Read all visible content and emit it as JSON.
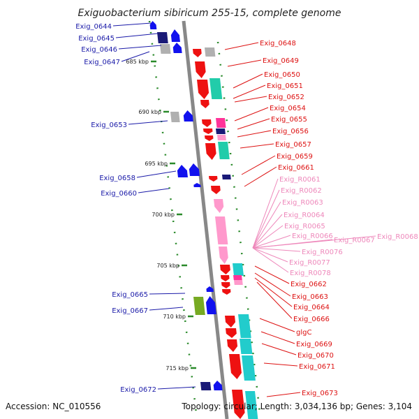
{
  "title": "Exiguobacterium sibiricum 255-15, complete genome",
  "footer": {
    "accession": "Accession: NC_010556",
    "summary": "Topology: circular; Length: 3,034,136 bp; Genes: 3,104"
  },
  "colors": {
    "backbone": "#888888",
    "ruler_dash": "#2a8a2a",
    "left_label": "#1a1aa8",
    "right_label": "#dd1111",
    "rna_label": "#ee88bb",
    "gene_red": "#ee1111",
    "gene_blue": "#1111ee",
    "gene_navy": "#1a1a77",
    "gene_gray": "#b0b0b0",
    "gene_teal": "#22ccaa",
    "gene_cyan": "#22cccc",
    "gene_pink": "#ff99cc",
    "gene_magenta": "#ff3399",
    "gene_olive": "#77aa22"
  },
  "kbp_ticks": [
    "685 kbp",
    "690 kbp",
    "695 kbp",
    "700 kbp",
    "705 kbp",
    "710 kbp",
    "715 kbp"
  ],
  "left_labels": [
    "Exig_0644",
    "Exig_0645",
    "Exig_0646",
    "Exig_0647",
    "Exig_0653",
    "Exig_0658",
    "Exig_0660",
    "Exig_0665",
    "Exig_0667",
    "Exig_0672"
  ],
  "right_labels": [
    "Exig_0648",
    "Exig_0649",
    "Exig_0650",
    "Exig_0651",
    "Exig_0652",
    "Exig_0654",
    "Exig_0655",
    "Exig_0656",
    "Exig_0657",
    "Exig_0659",
    "Exig_0661",
    "Exig_0662",
    "Exig_0663",
    "Exig_0664",
    "Exig_0666",
    "glgC",
    "Exig_0669",
    "Exig_0670",
    "Exig_0671",
    "Exig_0673"
  ],
  "rna_labels": [
    "Exig_R0061",
    "Exig_R0062",
    "Exig_R0063",
    "Exig_R0064",
    "Exig_R0065",
    "Exig_R0066",
    "Exig_R0067",
    "Exig_R0068",
    "Exig_R0076",
    "Exig_R0077",
    "Exig_R0078"
  ]
}
